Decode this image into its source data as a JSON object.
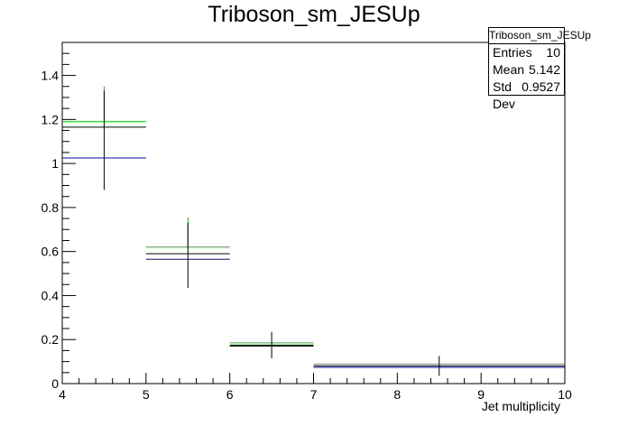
{
  "chart_data": {
    "type": "histogram",
    "title": "Triboson_sm_JESUp",
    "xlabel": "Jet multiplicity",
    "ylabel": "",
    "xlim": [
      4,
      10
    ],
    "ylim": [
      0,
      1.55
    ],
    "x_ticks": [
      "4",
      "5",
      "6",
      "7",
      "8",
      "9",
      "10"
    ],
    "y_ticks": [
      "0",
      "0.2",
      "0.4",
      "0.6",
      "0.8",
      "1",
      "1.2",
      "1.4"
    ],
    "series": [
      {
        "color": "#00cc00",
        "bins": [
          {
            "xlo": 4,
            "xhi": 5,
            "y": 1.19,
            "err_hi": 1.35,
            "err_lo": null
          },
          {
            "xlo": 5,
            "xhi": 6,
            "y": 0.62,
            "err_hi": 0.755,
            "err_lo": null
          },
          {
            "xlo": 6,
            "xhi": 7,
            "y": 0.185,
            "err_hi": null,
            "err_lo": null
          },
          {
            "xlo": 7,
            "xhi": 10,
            "y": 0.088,
            "err_hi": null,
            "err_lo": null
          }
        ]
      },
      {
        "color": "#000000",
        "bins": [
          {
            "xlo": 4,
            "xhi": 5,
            "y": 1.165,
            "err_hi": 1.33,
            "err_lo": 0.88
          },
          {
            "xlo": 5,
            "xhi": 6,
            "y": 0.59,
            "err_hi": 0.73,
            "err_lo": 0.435
          },
          {
            "xlo": 6,
            "xhi": 7,
            "y": 0.175,
            "err_hi": 0.235,
            "err_lo": 0.115
          },
          {
            "xlo": 7,
            "xhi": 10,
            "y": 0.08,
            "err_hi": 0.125,
            "err_lo": 0.035
          }
        ]
      },
      {
        "color": "#0000cc",
        "bins": [
          {
            "xlo": 4,
            "xhi": 5,
            "y": 1.025,
            "err_hi": null,
            "err_lo": null
          },
          {
            "xlo": 5,
            "xhi": 6,
            "y": 0.565,
            "err_hi": null,
            "err_lo": null
          },
          {
            "xlo": 6,
            "xhi": 7,
            "y": 0.17,
            "err_hi": null,
            "err_lo": null
          },
          {
            "xlo": 7,
            "xhi": 10,
            "y": 0.074,
            "err_hi": null,
            "err_lo": null
          }
        ]
      }
    ],
    "stats": {
      "name": "Triboson_sm_JESUp",
      "entries_label": "Entries",
      "entries": "10",
      "mean_label": "Mean",
      "mean": "5.142",
      "stddev_label": "Std Dev",
      "stddev": "0.9527"
    }
  }
}
